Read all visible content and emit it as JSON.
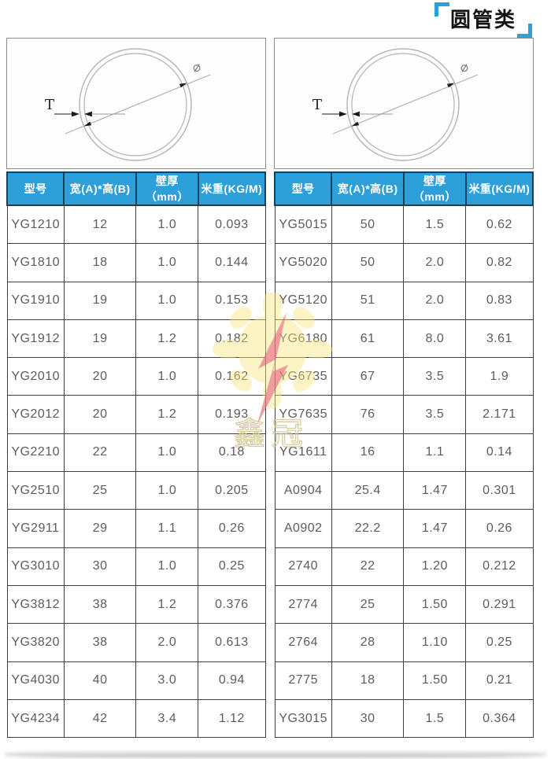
{
  "page": {
    "title": "圆管类"
  },
  "colors": {
    "accent_blue": "#2d9fd9",
    "header_border_navy": "#16405c",
    "cell_border": "#3f3f3f",
    "cell_text": "#5c5c5c",
    "watermark_yellow": "#f7e57d",
    "watermark_red": "#e8727b"
  },
  "diagram": {
    "thickness_label": "T",
    "diameter_label": "⌀"
  },
  "table_headers": [
    {
      "key": "model",
      "label": "型号"
    },
    {
      "key": "size",
      "label": "宽(A)*高(B)"
    },
    {
      "key": "thickness",
      "label": "壁厚（mm）"
    },
    {
      "key": "weight",
      "label": "米重(KG/M)"
    }
  ],
  "left_table": {
    "rows": [
      [
        "YG1210",
        "12",
        "1.0",
        "0.093"
      ],
      [
        "YG1810",
        "18",
        "1.0",
        "0.144"
      ],
      [
        "YG1910",
        "19",
        "1.0",
        "0.153"
      ],
      [
        "YG1912",
        "19",
        "1.2",
        "0.182"
      ],
      [
        "YG2010",
        "20",
        "1.0",
        "0.162"
      ],
      [
        "YG2012",
        "20",
        "1.2",
        "0.193"
      ],
      [
        "YG2210",
        "22",
        "1.0",
        "0.18"
      ],
      [
        "YG2510",
        "25",
        "1.0",
        "0.205"
      ],
      [
        "YG2911",
        "29",
        "1.1",
        "0.26"
      ],
      [
        "YG3010",
        "30",
        "1.0",
        "0.25"
      ],
      [
        "YG3812",
        "38",
        "1.2",
        "0.376"
      ],
      [
        "YG3820",
        "38",
        "2.0",
        "0.613"
      ],
      [
        "YG4030",
        "40",
        "3.0",
        "0.94"
      ],
      [
        "YG4234",
        "42",
        "3.4",
        "1.12"
      ]
    ]
  },
  "right_table": {
    "rows": [
      [
        "YG5015",
        "50",
        "1.5",
        "0.62"
      ],
      [
        "YG5020",
        "50",
        "2.0",
        "0.82"
      ],
      [
        "YG5120",
        "51",
        "2.0",
        "0.83"
      ],
      [
        "YG6180",
        "61",
        "8.0",
        "3.61"
      ],
      [
        "YG6735",
        "67",
        "3.5",
        "1.9"
      ],
      [
        "YG7635",
        "76",
        "3.5",
        "2.171"
      ],
      [
        "YG1611",
        "16",
        "1.1",
        "0.14"
      ],
      [
        "A0904",
        "25.4",
        "1.47",
        "0.301"
      ],
      [
        "A0902",
        "22.2",
        "1.47",
        "0.26"
      ],
      [
        "2740",
        "22",
        "1.20",
        "0.212"
      ],
      [
        "2774",
        "25",
        "1.50",
        "0.291"
      ],
      [
        "2764",
        "28",
        "1.10",
        "0.25"
      ],
      [
        "2775",
        "18",
        "1.50",
        "0.21"
      ],
      [
        "YG3015",
        "30",
        "1.5",
        "0.364"
      ]
    ]
  },
  "watermark": {
    "brand_text": "鑫冠"
  }
}
